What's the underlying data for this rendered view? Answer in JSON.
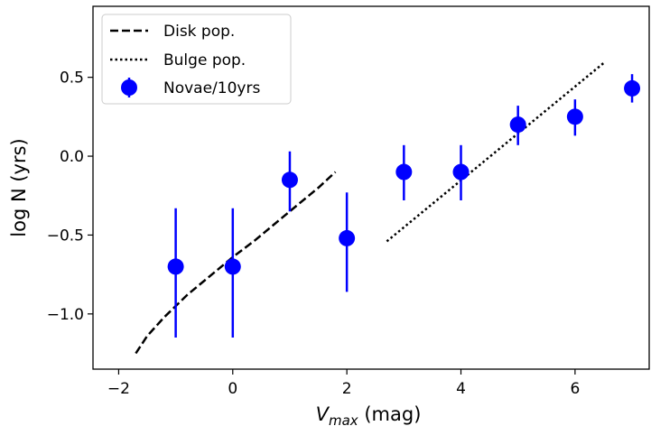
{
  "chart_data": {
    "type": "scatter",
    "title": "",
    "xlabel_main": "V",
    "xlabel_sub": "max",
    "xlabel_unit": " (mag)",
    "ylabel": "log N (yrs)",
    "xlim": [
      -2.45,
      7.3
    ],
    "ylim": [
      -1.35,
      0.95
    ],
    "xticks": [
      -2,
      0,
      2,
      4,
      6
    ],
    "xtick_labels": [
      "−2",
      "0",
      "2",
      "4",
      "6"
    ],
    "yticks": [
      -1.0,
      -0.5,
      0.0,
      0.5
    ],
    "ytick_labels": [
      "−1.0",
      "−0.5",
      "0.0",
      "0.5"
    ],
    "legend_position": "top-left",
    "series": [
      {
        "name": "Disk pop.",
        "style": "dashed",
        "color": "#000000",
        "x": [
          -1.7,
          -1.5,
          -1.2,
          -0.8,
          -0.4,
          0.0,
          0.4,
          0.8,
          1.2,
          1.5,
          1.8
        ],
        "y": [
          -1.25,
          -1.14,
          -1.02,
          -0.88,
          -0.76,
          -0.64,
          -0.53,
          -0.41,
          -0.29,
          -0.2,
          -0.1
        ]
      },
      {
        "name": "Bulge pop.",
        "style": "dotted",
        "color": "#000000",
        "x": [
          2.7,
          6.5
        ],
        "y": [
          -0.54,
          0.59
        ]
      },
      {
        "name": "Novae/10yrs",
        "style": "errorbar",
        "color": "#0000ff",
        "x": [
          -1,
          0,
          1,
          2,
          3,
          4,
          5,
          6,
          7
        ],
        "y": [
          -0.7,
          -0.7,
          -0.15,
          -0.52,
          -0.1,
          -0.1,
          0.2,
          0.25,
          0.43
        ],
        "yerr_low": [
          0.45,
          0.45,
          0.2,
          0.34,
          0.18,
          0.18,
          0.13,
          0.12,
          0.09
        ],
        "yerr_high": [
          0.37,
          0.37,
          0.18,
          0.29,
          0.17,
          0.17,
          0.12,
          0.11,
          0.09
        ]
      }
    ]
  }
}
